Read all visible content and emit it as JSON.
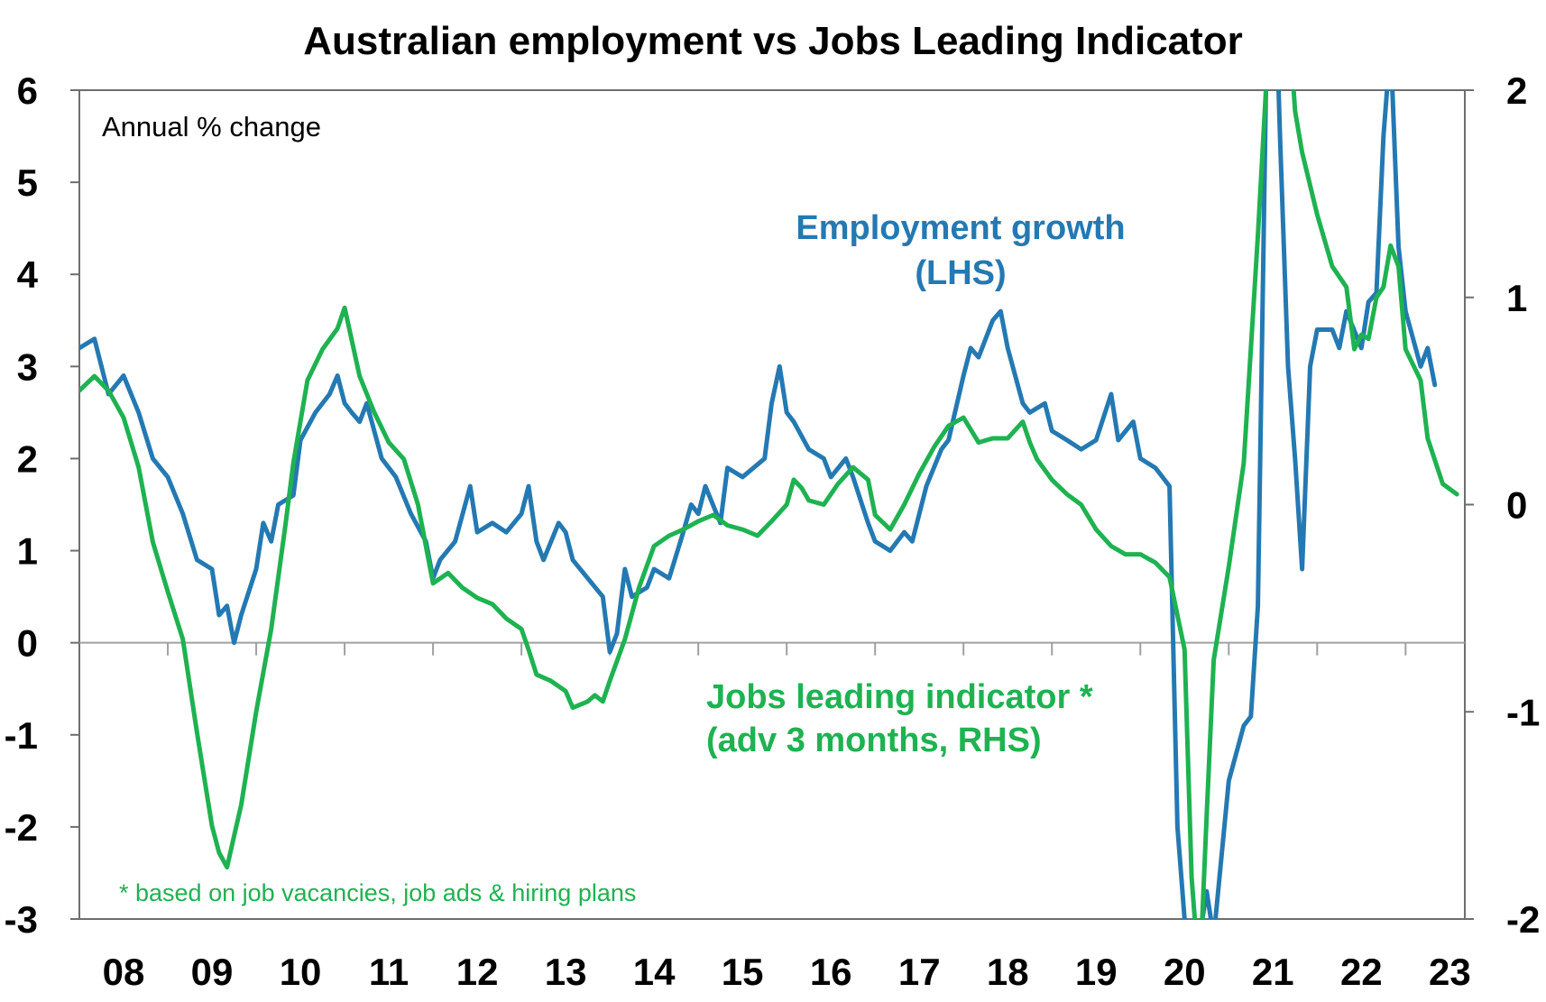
{
  "chart_data": {
    "type": "line",
    "title": "Australian employment vs Jobs Leading Indicator",
    "note": "Annual % change",
    "footnote": "* based on job vacancies, job ads & hiring plans",
    "x_tick_labels": [
      "08",
      "09",
      "10",
      "11",
      "12",
      "13",
      "14",
      "15",
      "16",
      "17",
      "18",
      "19",
      "20",
      "21",
      "22",
      "23"
    ],
    "y_left": {
      "range": [
        -3,
        6
      ],
      "ticks": [
        "6",
        "5",
        "4",
        "3",
        "2",
        "1",
        "0",
        "-1",
        "-2",
        "-3"
      ]
    },
    "y_right": {
      "range": [
        -2,
        2
      ],
      "ticks": [
        "2",
        "1",
        "0",
        "-1",
        "-2"
      ]
    },
    "grid": false,
    "series": [
      {
        "name": "Employment growth (LHS)",
        "label_lines": [
          "Employment growth",
          "(LHS)"
        ],
        "color": "#2479b2",
        "axis": "left",
        "points": [
          [
            2008.0,
            3.2
          ],
          [
            2008.17,
            3.3
          ],
          [
            2008.33,
            2.7
          ],
          [
            2008.5,
            2.9
          ],
          [
            2008.67,
            2.5
          ],
          [
            2008.83,
            2.0
          ],
          [
            2009.0,
            1.8
          ],
          [
            2009.17,
            1.4
          ],
          [
            2009.33,
            0.9
          ],
          [
            2009.5,
            0.8
          ],
          [
            2009.58,
            0.3
          ],
          [
            2009.67,
            0.4
          ],
          [
            2009.75,
            0.0
          ],
          [
            2009.83,
            0.3
          ],
          [
            2010.0,
            0.8
          ],
          [
            2010.08,
            1.3
          ],
          [
            2010.17,
            1.1
          ],
          [
            2010.25,
            1.5
          ],
          [
            2010.42,
            1.6
          ],
          [
            2010.5,
            2.2
          ],
          [
            2010.67,
            2.5
          ],
          [
            2010.83,
            2.7
          ],
          [
            2010.92,
            2.9
          ],
          [
            2011.0,
            2.6
          ],
          [
            2011.08,
            2.5
          ],
          [
            2011.17,
            2.4
          ],
          [
            2011.25,
            2.6
          ],
          [
            2011.42,
            2.0
          ],
          [
            2011.58,
            1.8
          ],
          [
            2011.75,
            1.4
          ],
          [
            2011.92,
            1.1
          ],
          [
            2012.0,
            0.7
          ],
          [
            2012.08,
            0.9
          ],
          [
            2012.25,
            1.1
          ],
          [
            2012.42,
            1.7
          ],
          [
            2012.5,
            1.2
          ],
          [
            2012.67,
            1.3
          ],
          [
            2012.83,
            1.2
          ],
          [
            2013.0,
            1.4
          ],
          [
            2013.08,
            1.7
          ],
          [
            2013.17,
            1.1
          ],
          [
            2013.25,
            0.9
          ],
          [
            2013.42,
            1.3
          ],
          [
            2013.5,
            1.2
          ],
          [
            2013.58,
            0.9
          ],
          [
            2013.75,
            0.7
          ],
          [
            2013.92,
            0.5
          ],
          [
            2014.0,
            -0.1
          ],
          [
            2014.08,
            0.1
          ],
          [
            2014.17,
            0.8
          ],
          [
            2014.25,
            0.5
          ],
          [
            2014.42,
            0.6
          ],
          [
            2014.5,
            0.8
          ],
          [
            2014.67,
            0.7
          ],
          [
            2014.83,
            1.2
          ],
          [
            2014.92,
            1.5
          ],
          [
            2015.0,
            1.4
          ],
          [
            2015.08,
            1.7
          ],
          [
            2015.25,
            1.3
          ],
          [
            2015.33,
            1.9
          ],
          [
            2015.5,
            1.8
          ],
          [
            2015.75,
            2.0
          ],
          [
            2015.83,
            2.6
          ],
          [
            2015.92,
            3.0
          ],
          [
            2016.0,
            2.5
          ],
          [
            2016.08,
            2.4
          ],
          [
            2016.25,
            2.1
          ],
          [
            2016.42,
            2.0
          ],
          [
            2016.5,
            1.8
          ],
          [
            2016.67,
            2.0
          ],
          [
            2016.75,
            1.8
          ],
          [
            2016.92,
            1.3
          ],
          [
            2017.0,
            1.1
          ],
          [
            2017.17,
            1.0
          ],
          [
            2017.33,
            1.2
          ],
          [
            2017.42,
            1.1
          ],
          [
            2017.58,
            1.7
          ],
          [
            2017.75,
            2.1
          ],
          [
            2017.83,
            2.2
          ],
          [
            2018.0,
            2.9
          ],
          [
            2018.08,
            3.2
          ],
          [
            2018.17,
            3.1
          ],
          [
            2018.33,
            3.5
          ],
          [
            2018.42,
            3.6
          ],
          [
            2018.5,
            3.2
          ],
          [
            2018.67,
            2.6
          ],
          [
            2018.75,
            2.5
          ],
          [
            2018.92,
            2.6
          ],
          [
            2019.0,
            2.3
          ],
          [
            2019.17,
            2.2
          ],
          [
            2019.33,
            2.1
          ],
          [
            2019.5,
            2.2
          ],
          [
            2019.67,
            2.7
          ],
          [
            2019.75,
            2.2
          ],
          [
            2019.92,
            2.4
          ],
          [
            2020.0,
            2.0
          ],
          [
            2020.17,
            1.9
          ],
          [
            2020.25,
            1.8
          ],
          [
            2020.33,
            1.7
          ],
          [
            2020.42,
            -2.0
          ],
          [
            2020.5,
            -3.0
          ],
          [
            2020.67,
            -3.2
          ],
          [
            2020.75,
            -2.7
          ],
          [
            2020.83,
            -3.2
          ],
          [
            2021.0,
            -1.5
          ],
          [
            2021.17,
            -0.9
          ],
          [
            2021.25,
            -0.8
          ],
          [
            2021.33,
            0.4
          ],
          [
            2021.42,
            6.0
          ],
          [
            2021.5,
            8.0
          ],
          [
            2021.58,
            5.5
          ],
          [
            2021.67,
            3.0
          ],
          [
            2021.75,
            2.0
          ],
          [
            2021.83,
            0.8
          ],
          [
            2021.92,
            3.0
          ],
          [
            2022.0,
            3.4
          ],
          [
            2022.17,
            3.4
          ],
          [
            2022.25,
            3.2
          ],
          [
            2022.33,
            3.6
          ],
          [
            2022.5,
            3.2
          ],
          [
            2022.58,
            3.7
          ],
          [
            2022.67,
            3.8
          ],
          [
            2022.75,
            5.5
          ],
          [
            2022.83,
            6.5
          ],
          [
            2022.92,
            4.3
          ],
          [
            2023.0,
            3.6
          ],
          [
            2023.17,
            3.0
          ],
          [
            2023.25,
            3.2
          ],
          [
            2023.33,
            2.8
          ]
        ]
      },
      {
        "name": "Jobs leading indicator * (adv 3 months, RHS)",
        "label_lines": [
          "Jobs leading indicator *",
          "(adv 3 months, RHS)"
        ],
        "color": "#1eb251",
        "axis": "right",
        "points": [
          [
            2008.0,
            0.55
          ],
          [
            2008.17,
            0.62
          ],
          [
            2008.33,
            0.55
          ],
          [
            2008.5,
            0.42
          ],
          [
            2008.67,
            0.18
          ],
          [
            2008.83,
            -0.18
          ],
          [
            2009.0,
            -0.42
          ],
          [
            2009.17,
            -0.65
          ],
          [
            2009.33,
            -1.1
          ],
          [
            2009.5,
            -1.55
          ],
          [
            2009.58,
            -1.68
          ],
          [
            2009.67,
            -1.75
          ],
          [
            2009.75,
            -1.6
          ],
          [
            2009.83,
            -1.45
          ],
          [
            2010.0,
            -1.0
          ],
          [
            2010.17,
            -0.6
          ],
          [
            2010.33,
            -0.1
          ],
          [
            2010.42,
            0.2
          ],
          [
            2010.58,
            0.6
          ],
          [
            2010.75,
            0.75
          ],
          [
            2010.92,
            0.85
          ],
          [
            2011.0,
            0.95
          ],
          [
            2011.17,
            0.62
          ],
          [
            2011.33,
            0.45
          ],
          [
            2011.5,
            0.3
          ],
          [
            2011.67,
            0.22
          ],
          [
            2011.83,
            0.0
          ],
          [
            2012.0,
            -0.38
          ],
          [
            2012.17,
            -0.33
          ],
          [
            2012.33,
            -0.4
          ],
          [
            2012.5,
            -0.45
          ],
          [
            2012.67,
            -0.48
          ],
          [
            2012.83,
            -0.55
          ],
          [
            2013.0,
            -0.6
          ],
          [
            2013.08,
            -0.7
          ],
          [
            2013.17,
            -0.82
          ],
          [
            2013.33,
            -0.85
          ],
          [
            2013.5,
            -0.9
          ],
          [
            2013.58,
            -0.98
          ],
          [
            2013.75,
            -0.95
          ],
          [
            2013.83,
            -0.92
          ],
          [
            2013.92,
            -0.95
          ],
          [
            2014.0,
            -0.85
          ],
          [
            2014.17,
            -0.65
          ],
          [
            2014.33,
            -0.4
          ],
          [
            2014.5,
            -0.2
          ],
          [
            2014.67,
            -0.15
          ],
          [
            2014.83,
            -0.12
          ],
          [
            2015.0,
            -0.08
          ],
          [
            2015.17,
            -0.05
          ],
          [
            2015.33,
            -0.1
          ],
          [
            2015.5,
            -0.12
          ],
          [
            2015.67,
            -0.15
          ],
          [
            2015.83,
            -0.08
          ],
          [
            2016.0,
            0.0
          ],
          [
            2016.08,
            0.12
          ],
          [
            2016.17,
            0.08
          ],
          [
            2016.25,
            0.02
          ],
          [
            2016.42,
            0.0
          ],
          [
            2016.58,
            0.1
          ],
          [
            2016.75,
            0.18
          ],
          [
            2016.92,
            0.12
          ],
          [
            2017.0,
            -0.05
          ],
          [
            2017.17,
            -0.12
          ],
          [
            2017.33,
            0.0
          ],
          [
            2017.5,
            0.15
          ],
          [
            2017.67,
            0.28
          ],
          [
            2017.83,
            0.38
          ],
          [
            2018.0,
            0.42
          ],
          [
            2018.17,
            0.3
          ],
          [
            2018.33,
            0.32
          ],
          [
            2018.5,
            0.32
          ],
          [
            2018.67,
            0.4
          ],
          [
            2018.75,
            0.3
          ],
          [
            2018.83,
            0.22
          ],
          [
            2019.0,
            0.12
          ],
          [
            2019.17,
            0.05
          ],
          [
            2019.33,
            0.0
          ],
          [
            2019.5,
            -0.12
          ],
          [
            2019.67,
            -0.2
          ],
          [
            2019.83,
            -0.24
          ],
          [
            2020.0,
            -0.24
          ],
          [
            2020.17,
            -0.28
          ],
          [
            2020.33,
            -0.35
          ],
          [
            2020.5,
            -0.7
          ],
          [
            2020.58,
            -1.8
          ],
          [
            2020.67,
            -2.3
          ],
          [
            2020.75,
            -1.5
          ],
          [
            2020.83,
            -0.75
          ],
          [
            2021.0,
            -0.3
          ],
          [
            2021.17,
            0.2
          ],
          [
            2021.33,
            1.3
          ],
          [
            2021.42,
            2.0
          ],
          [
            2021.5,
            2.4
          ],
          [
            2021.67,
            2.4
          ],
          [
            2021.75,
            1.9
          ],
          [
            2021.83,
            1.7
          ],
          [
            2022.0,
            1.4
          ],
          [
            2022.17,
            1.15
          ],
          [
            2022.33,
            1.05
          ],
          [
            2022.42,
            0.75
          ],
          [
            2022.5,
            0.82
          ],
          [
            2022.58,
            0.8
          ],
          [
            2022.67,
            1.0
          ],
          [
            2022.75,
            1.05
          ],
          [
            2022.83,
            1.25
          ],
          [
            2022.92,
            1.15
          ],
          [
            2023.0,
            0.75
          ],
          [
            2023.17,
            0.6
          ],
          [
            2023.25,
            0.32
          ],
          [
            2023.42,
            0.1
          ],
          [
            2023.58,
            0.05
          ]
        ]
      }
    ]
  }
}
